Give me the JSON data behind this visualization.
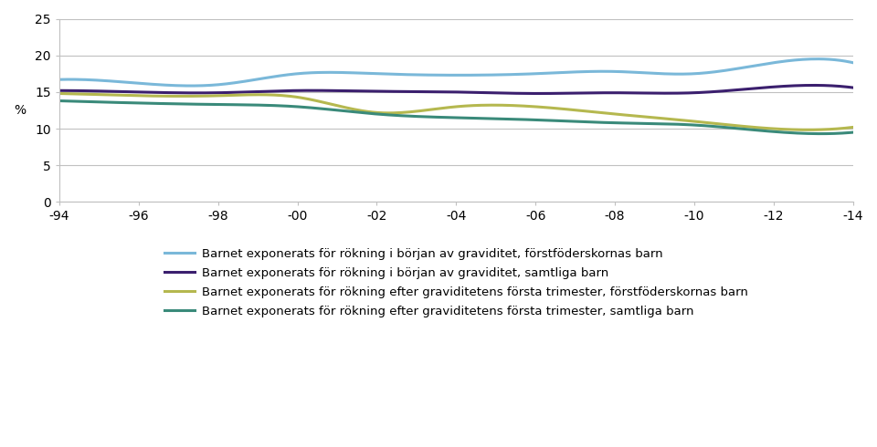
{
  "x_labels": [
    "-94",
    "-96",
    "-98",
    "-00",
    "-02",
    "-04",
    "-06",
    "-08",
    "-10",
    "-12",
    "-14"
  ],
  "x_values": [
    1994,
    1996,
    1998,
    2000,
    2002,
    2004,
    2006,
    2008,
    2010,
    2012,
    2014
  ],
  "line1_label": "Barnet exponerats för rökning i början av graviditet, förstföderskornas barn",
  "line2_label": "Barnet exponerats för rökning i början av graviditet, samtliga barn",
  "line3_label": "Barnet exponerats för rökning efter graviditetens första trimester, förstföderskornas barn",
  "line4_label": "Barnet exponerats för rökning efter graviditetens första trimester, samtliga barn",
  "line1_color": "#7ab8d9",
  "line2_color": "#3b1f6e",
  "line3_color": "#b5b84f",
  "line4_color": "#3a8a7a",
  "line1_values": [
    16.7,
    16.2,
    16.0,
    17.5,
    17.5,
    17.3,
    17.5,
    17.8,
    17.5,
    19.0,
    19.0
  ],
  "line2_values": [
    15.2,
    15.0,
    14.9,
    15.2,
    15.1,
    15.0,
    14.8,
    14.9,
    14.9,
    15.7,
    15.6
  ],
  "line3_values": [
    14.8,
    14.5,
    14.5,
    14.3,
    12.2,
    13.0,
    13.0,
    12.0,
    11.0,
    10.0,
    10.2
  ],
  "line4_values": [
    13.8,
    13.5,
    13.3,
    13.0,
    12.0,
    11.5,
    11.2,
    10.8,
    10.5,
    9.6,
    9.5
  ],
  "ylim": [
    0,
    25
  ],
  "yticks": [
    0,
    5,
    10,
    15,
    20,
    25
  ],
  "ylabel": "%",
  "linewidth": 2.2,
  "fig_width": 9.6,
  "fig_height": 4.9,
  "chart_bg": "#ffffff",
  "grid_color": "#c0c0c0",
  "legend_fontsize": 9.5,
  "axis_fontsize": 10
}
